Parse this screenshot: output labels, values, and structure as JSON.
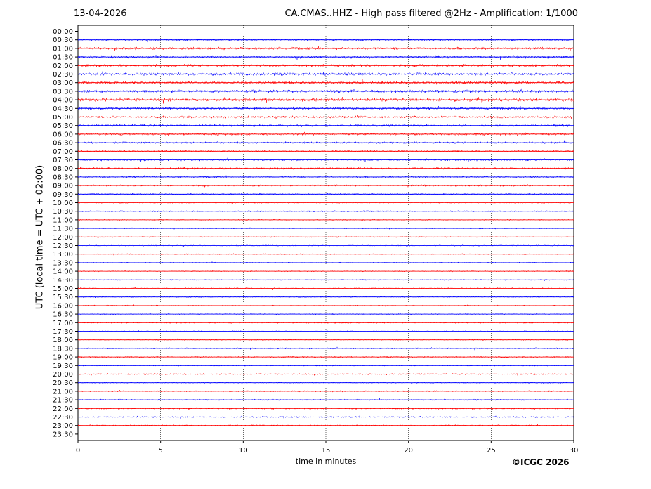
{
  "header": {
    "date": "13-04-2026",
    "station_title": "CA.CMAS..HHZ - High pass filtered @2Hz - Amplification: 1/1000"
  },
  "footer": {
    "credit": "©ICGC 2026"
  },
  "chart_data": {
    "type": "line",
    "title": "CA.CMAS..HHZ - High pass filtered @2Hz - Amplification: 1/1000",
    "xlabel": "time in minutes",
    "ylabel": "UTC (local time = UTC + 02:00)",
    "xlim": [
      0,
      30
    ],
    "x_ticks": [
      0,
      5,
      10,
      15,
      20,
      25,
      30
    ],
    "grid": "vertical dotted at x ticks",
    "trace_colors": [
      "#0000ff",
      "#ff0000"
    ],
    "rows": [
      {
        "label": "00:00",
        "color": "#0000ff",
        "amplitude": 0.0
      },
      {
        "label": "00:30",
        "color": "#0000ff",
        "amplitude": 0.35
      },
      {
        "label": "01:00",
        "color": "#ff0000",
        "amplitude": 0.45
      },
      {
        "label": "01:30",
        "color": "#0000ff",
        "amplitude": 0.5
      },
      {
        "label": "02:00",
        "color": "#ff0000",
        "amplitude": 0.45
      },
      {
        "label": "02:30",
        "color": "#0000ff",
        "amplitude": 0.5
      },
      {
        "label": "03:00",
        "color": "#ff0000",
        "amplitude": 0.55
      },
      {
        "label": "03:30",
        "color": "#0000ff",
        "amplitude": 0.5
      },
      {
        "label": "04:00",
        "color": "#ff0000",
        "amplitude": 0.55
      },
      {
        "label": "04:30",
        "color": "#0000ff",
        "amplitude": 0.45
      },
      {
        "label": "05:00",
        "color": "#ff0000",
        "amplitude": 0.4
      },
      {
        "label": "05:30",
        "color": "#0000ff",
        "amplitude": 0.4
      },
      {
        "label": "06:00",
        "color": "#ff0000",
        "amplitude": 0.4
      },
      {
        "label": "06:30",
        "color": "#0000ff",
        "amplitude": 0.35
      },
      {
        "label": "07:00",
        "color": "#ff0000",
        "amplitude": 0.35
      },
      {
        "label": "07:30",
        "color": "#0000ff",
        "amplitude": 0.35
      },
      {
        "label": "08:00",
        "color": "#ff0000",
        "amplitude": 0.35
      },
      {
        "label": "08:30",
        "color": "#0000ff",
        "amplitude": 0.3
      },
      {
        "label": "09:00",
        "color": "#ff0000",
        "amplitude": 0.3
      },
      {
        "label": "09:30",
        "color": "#0000ff",
        "amplitude": 0.3
      },
      {
        "label": "10:00",
        "color": "#ff0000",
        "amplitude": 0.25
      },
      {
        "label": "10:30",
        "color": "#0000ff",
        "amplitude": 0.25
      },
      {
        "label": "11:00",
        "color": "#ff0000",
        "amplitude": 0.2
      },
      {
        "label": "11:30",
        "color": "#0000ff",
        "amplitude": 0.2
      },
      {
        "label": "12:00",
        "color": "#ff0000",
        "amplitude": 0.2
      },
      {
        "label": "12:30",
        "color": "#0000ff",
        "amplitude": 0.2
      },
      {
        "label": "13:00",
        "color": "#ff0000",
        "amplitude": 0.2
      },
      {
        "label": "13:30",
        "color": "#0000ff",
        "amplitude": 0.2
      },
      {
        "label": "14:00",
        "color": "#ff0000",
        "amplitude": 0.2
      },
      {
        "label": "14:30",
        "color": "#0000ff",
        "amplitude": 0.2
      },
      {
        "label": "15:00",
        "color": "#ff0000",
        "amplitude": 0.25
      },
      {
        "label": "15:30",
        "color": "#0000ff",
        "amplitude": 0.2
      },
      {
        "label": "16:00",
        "color": "#ff0000",
        "amplitude": 0.2
      },
      {
        "label": "16:30",
        "color": "#0000ff",
        "amplitude": 0.2
      },
      {
        "label": "17:00",
        "color": "#ff0000",
        "amplitude": 0.25
      },
      {
        "label": "17:30",
        "color": "#0000ff",
        "amplitude": 0.2
      },
      {
        "label": "18:00",
        "color": "#ff0000",
        "amplitude": 0.2
      },
      {
        "label": "18:30",
        "color": "#0000ff",
        "amplitude": 0.25
      },
      {
        "label": "19:00",
        "color": "#ff0000",
        "amplitude": 0.25
      },
      {
        "label": "19:30",
        "color": "#0000ff",
        "amplitude": 0.2
      },
      {
        "label": "20:00",
        "color": "#ff0000",
        "amplitude": 0.25
      },
      {
        "label": "20:30",
        "color": "#0000ff",
        "amplitude": 0.2
      },
      {
        "label": "21:00",
        "color": "#ff0000",
        "amplitude": 0.25
      },
      {
        "label": "21:30",
        "color": "#0000ff",
        "amplitude": 0.25
      },
      {
        "label": "22:00",
        "color": "#ff0000",
        "amplitude": 0.3
      },
      {
        "label": "22:30",
        "color": "#0000ff",
        "amplitude": 0.25
      },
      {
        "label": "23:00",
        "color": "#ff0000",
        "amplitude": 0.25
      },
      {
        "label": "23:30",
        "color": "#0000ff",
        "amplitude": 0.0
      }
    ]
  }
}
